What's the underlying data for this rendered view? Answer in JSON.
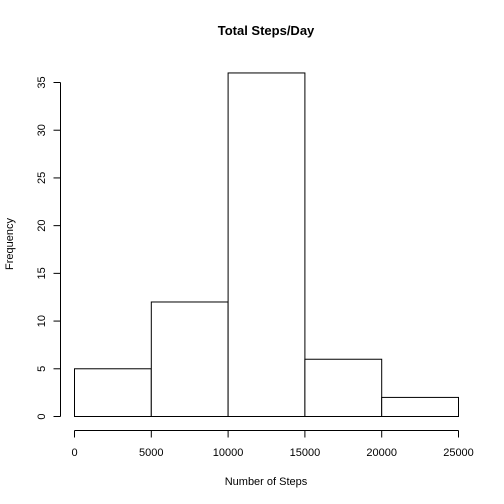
{
  "chart_data": {
    "type": "bar",
    "title": "Total Steps/Day",
    "xlabel": "Number of Steps",
    "ylabel": "Frequency",
    "bins": [
      {
        "start": 0,
        "end": 5000,
        "count": 5
      },
      {
        "start": 5000,
        "end": 10000,
        "count": 12
      },
      {
        "start": 10000,
        "end": 15000,
        "count": 36
      },
      {
        "start": 15000,
        "end": 20000,
        "count": 6
      },
      {
        "start": 20000,
        "end": 25000,
        "count": 2
      }
    ],
    "xlim": [
      0,
      25000
    ],
    "ylim": [
      0,
      35
    ],
    "x_ticks": [
      0,
      5000,
      10000,
      15000,
      20000,
      25000
    ],
    "y_ticks": [
      0,
      5,
      10,
      15,
      20,
      25,
      30,
      35
    ],
    "grid": false,
    "colors": {
      "bar_fill": "#ffffff",
      "bar_stroke": "#000000"
    }
  }
}
